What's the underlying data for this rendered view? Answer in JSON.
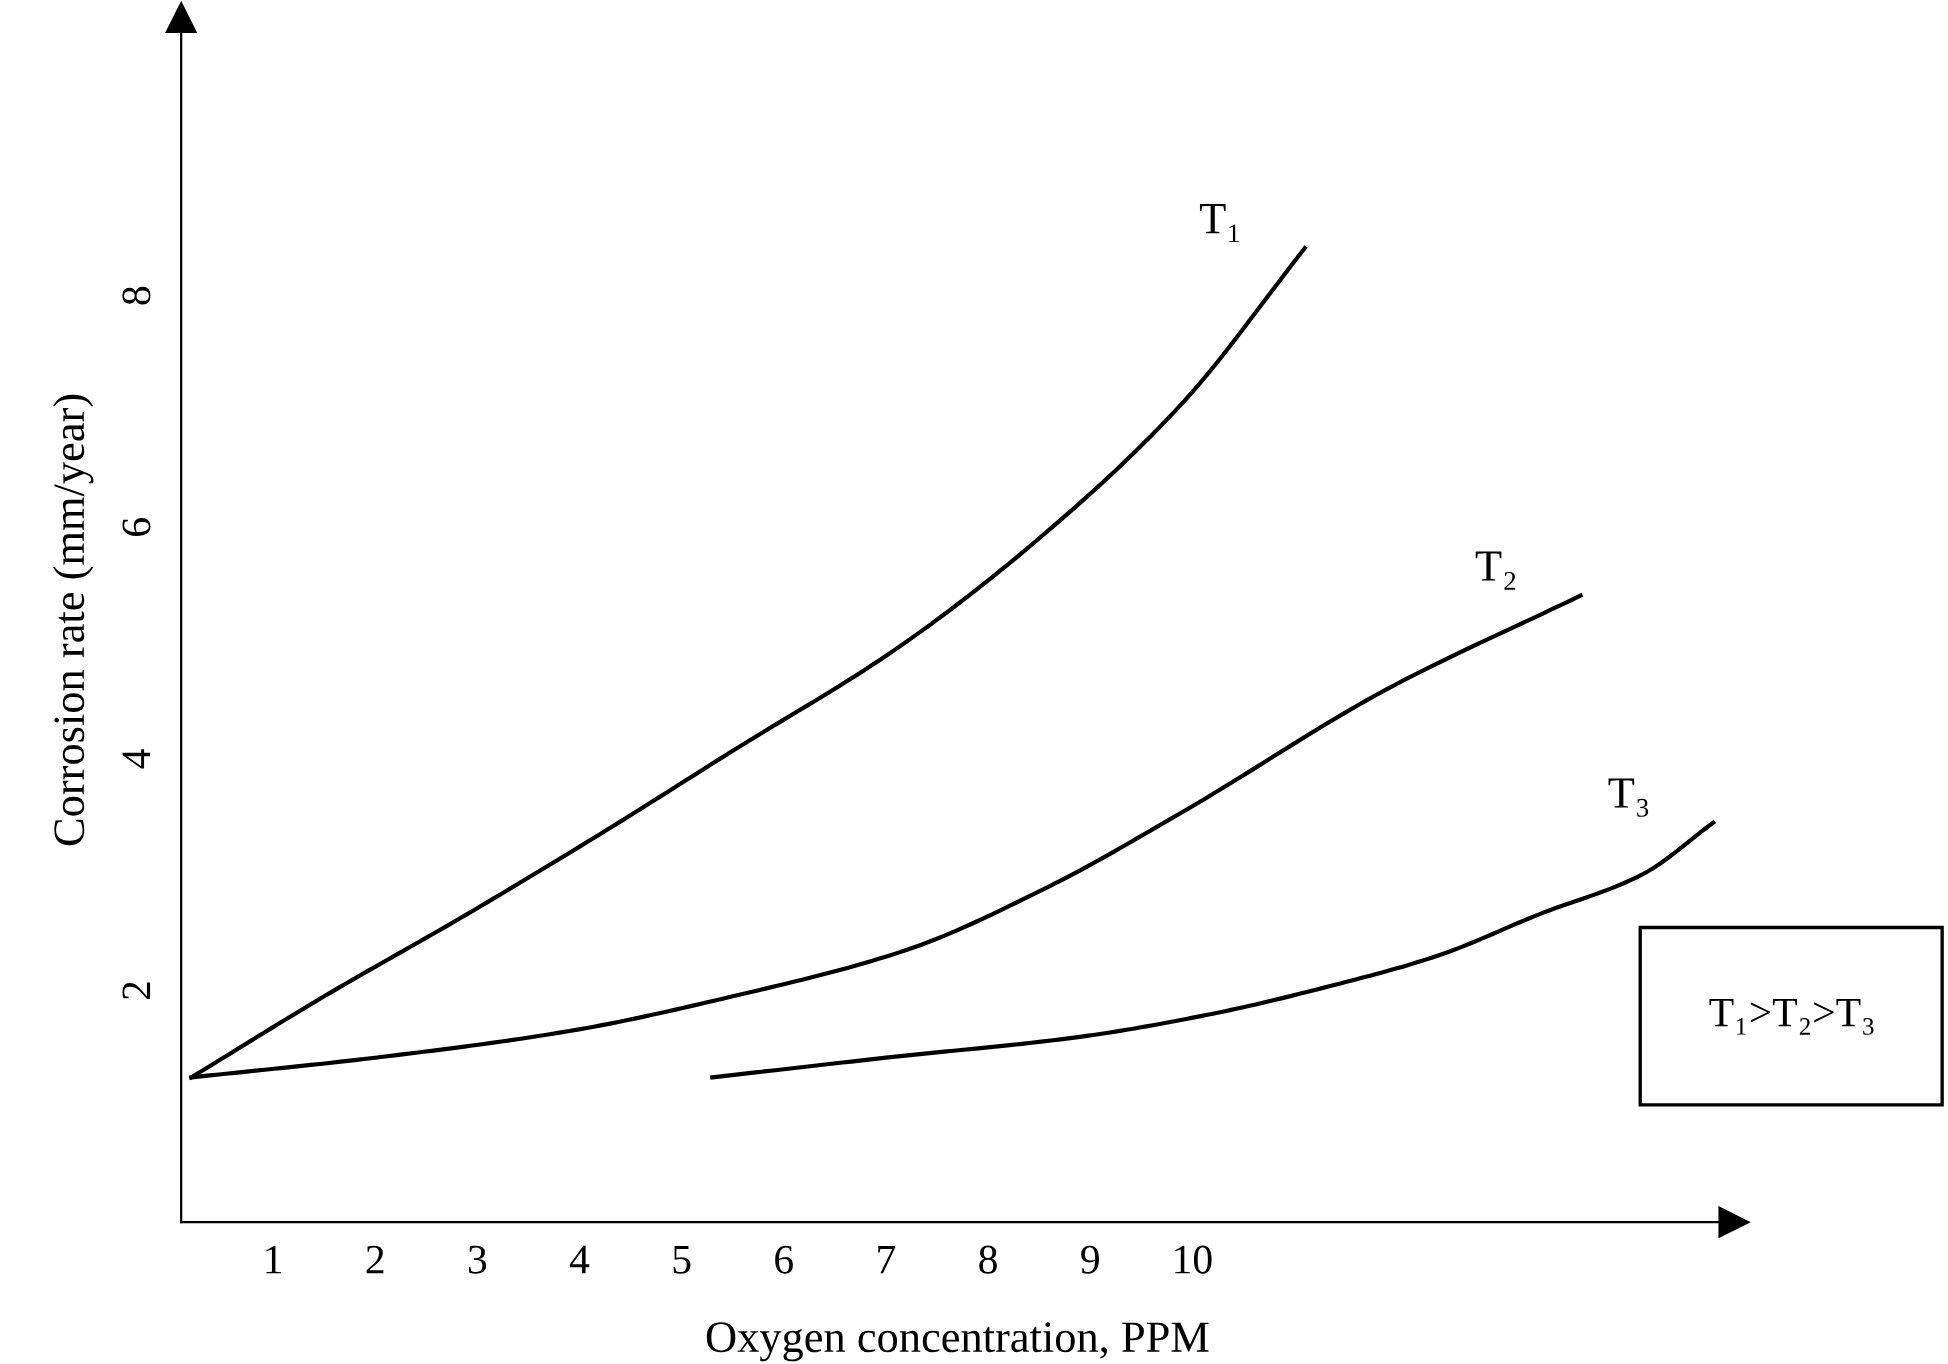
{
  "chart_data": {
    "type": "line",
    "xlabel": "Oxygen concentration, PPM",
    "ylabel": "Corrosion rate (mm/year)",
    "xlim": [
      0.1,
      15.3
    ],
    "ylim": [
      0,
      10.4
    ],
    "xticks": [
      1,
      2,
      3,
      4,
      5,
      6,
      7,
      8,
      9,
      10
    ],
    "yticks": [
      2,
      4,
      6,
      8
    ],
    "grid": false,
    "legend": false,
    "marker": "none",
    "line_style": "solid",
    "series": [
      {
        "name": "T₁",
        "color": "#000000",
        "x": [
          0.2,
          1.5,
          2.9,
          4.2,
          5.5,
          7.1,
          8.4,
          9.9,
          11.1
        ],
        "values": [
          1.25,
          1.95,
          2.66,
          3.35,
          4.07,
          4.95,
          5.83,
          7.07,
          8.41
        ]
      },
      {
        "name": "T₂",
        "color": "#000000",
        "x": [
          0.2,
          2.0,
          3.9,
          5.5,
          7.2,
          8.6,
          9.9,
          11.9,
          13.8
        ],
        "values": [
          1.25,
          1.42,
          1.65,
          1.95,
          2.35,
          2.9,
          3.54,
          4.6,
          5.41
        ]
      },
      {
        "name": "T₃",
        "color": "#000000",
        "x": [
          5.3,
          7.0,
          8.9,
          10.2,
          11.4,
          12.4,
          13.4,
          14.4,
          15.1
        ],
        "values": [
          1.25,
          1.42,
          1.6,
          1.8,
          2.05,
          2.3,
          2.66,
          3.0,
          3.45
        ]
      }
    ],
    "annotations": [
      "T₁>T₂>T₃"
    ]
  }
}
